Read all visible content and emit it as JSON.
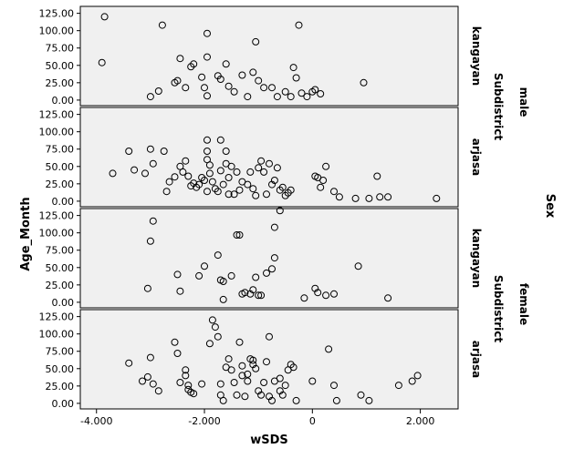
{
  "chart_data": {
    "type": "scatter",
    "xlabel": "wSDS",
    "ylabel": "Age_Month",
    "xlim": [
      -4.3,
      2.7
    ],
    "ylim": [
      -8,
      135
    ],
    "x_ticks": [
      -4,
      -2,
      0,
      2
    ],
    "x_tick_labels": [
      "-4.000",
      "-2.000",
      "0",
      "2.000"
    ],
    "y_ticks": [
      0,
      25,
      50,
      75,
      100,
      125
    ],
    "y_tick_labels": [
      "0.00",
      "25.00",
      "50.00",
      "75.00",
      "100.00",
      "125.00"
    ],
    "grid": false,
    "facet_outer_label": "Sex",
    "facet_inner_label": "Subdistrict",
    "sex_groups": [
      "male",
      "female"
    ],
    "panels": [
      {
        "sex": "male",
        "subdistrict": "kangayan",
        "points": [
          [
            -3.85,
            120
          ],
          [
            -3.9,
            54
          ],
          [
            -2.78,
            108
          ],
          [
            -1.95,
            96
          ],
          [
            -3.0,
            5
          ],
          [
            -2.85,
            13
          ],
          [
            -2.55,
            25
          ],
          [
            -2.5,
            28
          ],
          [
            -2.45,
            60
          ],
          [
            -2.35,
            18
          ],
          [
            -2.25,
            48
          ],
          [
            -2.2,
            52
          ],
          [
            -2.05,
            33
          ],
          [
            -2.0,
            18
          ],
          [
            -1.95,
            6
          ],
          [
            -1.95,
            62
          ],
          [
            -1.75,
            35
          ],
          [
            -1.7,
            30
          ],
          [
            -1.6,
            52
          ],
          [
            -1.55,
            20
          ],
          [
            -1.45,
            12
          ],
          [
            -1.3,
            36
          ],
          [
            -1.2,
            5
          ],
          [
            -1.1,
            40
          ],
          [
            -1.05,
            84
          ],
          [
            -1.0,
            28
          ],
          [
            -0.9,
            18
          ],
          [
            -0.75,
            18
          ],
          [
            -0.65,
            5
          ],
          [
            -0.5,
            12
          ],
          [
            -0.4,
            5
          ],
          [
            -0.35,
            47
          ],
          [
            -0.3,
            32
          ],
          [
            -0.25,
            108
          ],
          [
            -0.2,
            10
          ],
          [
            -0.1,
            5
          ],
          [
            0.0,
            12
          ],
          [
            0.05,
            15
          ],
          [
            0.15,
            9
          ],
          [
            0.95,
            25
          ]
        ]
      },
      {
        "sex": "male",
        "subdistrict": "arjasa",
        "points": [
          [
            -3.7,
            40
          ],
          [
            -3.4,
            72
          ],
          [
            -3.3,
            45
          ],
          [
            -3.1,
            40
          ],
          [
            -3.0,
            75
          ],
          [
            -2.95,
            54
          ],
          [
            -2.75,
            72
          ],
          [
            -2.7,
            14
          ],
          [
            -2.65,
            28
          ],
          [
            -2.55,
            35
          ],
          [
            -2.45,
            50
          ],
          [
            -2.4,
            42
          ],
          [
            -2.35,
            58
          ],
          [
            -2.3,
            36
          ],
          [
            -2.25,
            22
          ],
          [
            -2.2,
            26
          ],
          [
            -2.15,
            20
          ],
          [
            -2.1,
            24
          ],
          [
            -2.05,
            34
          ],
          [
            -2.0,
            30
          ],
          [
            -1.95,
            14
          ],
          [
            -1.9,
            40
          ],
          [
            -1.9,
            52
          ],
          [
            -1.95,
            60
          ],
          [
            -1.95,
            72
          ],
          [
            -1.95,
            88
          ],
          [
            -1.85,
            28
          ],
          [
            -1.8,
            18
          ],
          [
            -1.75,
            14
          ],
          [
            -1.7,
            44
          ],
          [
            -1.65,
            24
          ],
          [
            -1.7,
            88
          ],
          [
            -1.6,
            72
          ],
          [
            -1.6,
            54
          ],
          [
            -1.55,
            10
          ],
          [
            -1.55,
            34
          ],
          [
            -1.5,
            50
          ],
          [
            -1.45,
            10
          ],
          [
            -1.4,
            42
          ],
          [
            -1.35,
            16
          ],
          [
            -1.3,
            28
          ],
          [
            -1.2,
            24
          ],
          [
            -1.15,
            42
          ],
          [
            -1.1,
            18
          ],
          [
            -1.05,
            8
          ],
          [
            -1.0,
            48
          ],
          [
            -0.95,
            58
          ],
          [
            -0.9,
            42
          ],
          [
            -0.85,
            10
          ],
          [
            -0.8,
            54
          ],
          [
            -0.75,
            24
          ],
          [
            -0.7,
            30
          ],
          [
            -0.65,
            48
          ],
          [
            -0.6,
            16
          ],
          [
            -0.55,
            20
          ],
          [
            -0.5,
            8
          ],
          [
            -0.45,
            12
          ],
          [
            -0.4,
            16
          ],
          [
            0.05,
            36
          ],
          [
            0.1,
            34
          ],
          [
            0.15,
            20
          ],
          [
            0.2,
            30
          ],
          [
            0.25,
            50
          ],
          [
            0.4,
            14
          ],
          [
            0.5,
            6
          ],
          [
            0.8,
            4
          ],
          [
            1.05,
            4
          ],
          [
            1.2,
            36
          ],
          [
            1.25,
            6
          ],
          [
            1.4,
            6
          ],
          [
            2.3,
            4
          ]
        ]
      },
      {
        "sex": "female",
        "subdistrict": "kangayan",
        "points": [
          [
            -3.0,
            88
          ],
          [
            -2.95,
            117
          ],
          [
            -3.05,
            20
          ],
          [
            -2.5,
            40
          ],
          [
            -2.45,
            16
          ],
          [
            -2.1,
            38
          ],
          [
            -2.0,
            52
          ],
          [
            -1.75,
            68
          ],
          [
            -1.7,
            32
          ],
          [
            -1.65,
            30
          ],
          [
            -1.65,
            4
          ],
          [
            -1.5,
            38
          ],
          [
            -1.4,
            97
          ],
          [
            -1.35,
            97
          ],
          [
            -1.3,
            12
          ],
          [
            -1.25,
            14
          ],
          [
            -1.15,
            12
          ],
          [
            -1.1,
            18
          ],
          [
            -1.05,
            36
          ],
          [
            -1.0,
            10
          ],
          [
            -0.95,
            10
          ],
          [
            -0.85,
            42
          ],
          [
            -0.75,
            48
          ],
          [
            -0.7,
            64
          ],
          [
            -0.7,
            108
          ],
          [
            -0.6,
            132
          ],
          [
            -0.15,
            6
          ],
          [
            0.05,
            20
          ],
          [
            0.1,
            14
          ],
          [
            0.25,
            10
          ],
          [
            0.4,
            12
          ],
          [
            0.85,
            52
          ],
          [
            1.4,
            6
          ]
        ]
      },
      {
        "sex": "female",
        "subdistrict": "arjasa",
        "points": [
          [
            -3.4,
            58
          ],
          [
            -3.15,
            32
          ],
          [
            -3.05,
            38
          ],
          [
            -3.0,
            66
          ],
          [
            -2.95,
            28
          ],
          [
            -2.85,
            18
          ],
          [
            -2.55,
            88
          ],
          [
            -2.5,
            72
          ],
          [
            -2.45,
            30
          ],
          [
            -2.35,
            48
          ],
          [
            -2.35,
            40
          ],
          [
            -2.3,
            20
          ],
          [
            -2.3,
            26
          ],
          [
            -2.25,
            16
          ],
          [
            -2.2,
            14
          ],
          [
            -2.05,
            28
          ],
          [
            -1.9,
            86
          ],
          [
            -1.85,
            120
          ],
          [
            -1.8,
            110
          ],
          [
            -1.75,
            96
          ],
          [
            -1.7,
            12
          ],
          [
            -1.7,
            28
          ],
          [
            -1.65,
            4
          ],
          [
            -1.6,
            52
          ],
          [
            -1.55,
            64
          ],
          [
            -1.5,
            48
          ],
          [
            -1.45,
            30
          ],
          [
            -1.4,
            12
          ],
          [
            -1.35,
            88
          ],
          [
            -1.3,
            54
          ],
          [
            -1.3,
            40
          ],
          [
            -1.25,
            10
          ],
          [
            -1.2,
            32
          ],
          [
            -1.2,
            42
          ],
          [
            -1.15,
            64
          ],
          [
            -1.1,
            56
          ],
          [
            -1.1,
            62
          ],
          [
            -1.05,
            50
          ],
          [
            -1.0,
            18
          ],
          [
            -0.95,
            12
          ],
          [
            -0.9,
            30
          ],
          [
            -0.85,
            60
          ],
          [
            -0.8,
            96
          ],
          [
            -0.8,
            10
          ],
          [
            -0.75,
            4
          ],
          [
            -0.7,
            32
          ],
          [
            -0.6,
            36
          ],
          [
            -0.6,
            18
          ],
          [
            -0.55,
            12
          ],
          [
            -0.5,
            26
          ],
          [
            -0.45,
            48
          ],
          [
            -0.4,
            56
          ],
          [
            -0.35,
            52
          ],
          [
            -0.3,
            4
          ],
          [
            0.0,
            32
          ],
          [
            0.3,
            78
          ],
          [
            0.4,
            26
          ],
          [
            0.45,
            4
          ],
          [
            0.9,
            12
          ],
          [
            1.05,
            4
          ],
          [
            1.6,
            26
          ],
          [
            1.85,
            32
          ],
          [
            1.95,
            40
          ]
        ]
      }
    ]
  }
}
